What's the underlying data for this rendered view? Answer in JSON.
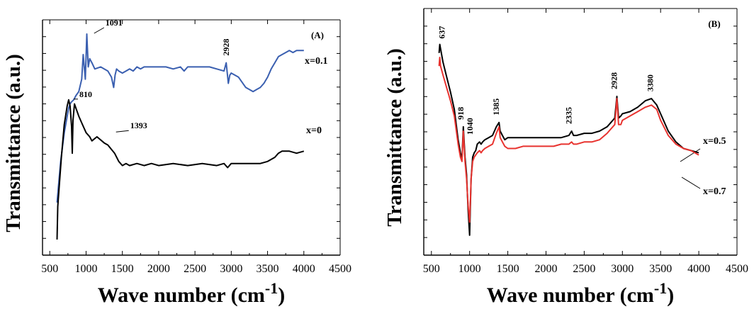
{
  "chart_data": [
    {
      "type": "line",
      "panel_label": "(A)",
      "xlabel": "Wave number (cm-1)",
      "xlabel_main": "Wave number (cm",
      "xlabel_sup": "-1",
      "xlabel_end": ")",
      "ylabel": "Transmittance (a.u.)",
      "xlim": [
        400,
        4500
      ],
      "x_ticks": [
        "500",
        "1000",
        "1500",
        "2000",
        "2500",
        "3000",
        "3500",
        "4000",
        "4500"
      ],
      "ylim": [
        0,
        100
      ],
      "grid": false,
      "series": [
        {
          "name": "x=0.1",
          "color": "#3a5fb0",
          "x": [
            600,
            620,
            650,
            700,
            740,
            760,
            780,
            800,
            830,
            860,
            900,
            940,
            960,
            990,
            1010,
            1030,
            1050,
            1080,
            1120,
            1200,
            1300,
            1350,
            1380,
            1400,
            1420,
            1450,
            1500,
            1550,
            1600,
            1650,
            1700,
            1750,
            1800,
            1900,
            2000,
            2100,
            2200,
            2300,
            2350,
            2400,
            2500,
            2600,
            2700,
            2800,
            2900,
            2930,
            2960,
            2980,
            3000,
            3050,
            3100,
            3200,
            3300,
            3350,
            3400,
            3450,
            3500,
            3550,
            3600,
            3650,
            3700,
            3750,
            3800,
            3850,
            3900,
            3950,
            4000
          ],
          "y": [
            18,
            26,
            38,
            52,
            60,
            64,
            66,
            67,
            68,
            70,
            72,
            78,
            90,
            78,
            100,
            84,
            88,
            86,
            83,
            84,
            82,
            79,
            74,
            80,
            83,
            82,
            81,
            82,
            83,
            82,
            84,
            83,
            84,
            84,
            84,
            84,
            83,
            84,
            82,
            84,
            84,
            84,
            84,
            83,
            82,
            86,
            76,
            80,
            81,
            80,
            79,
            74,
            72,
            73,
            74,
            76,
            79,
            83,
            86,
            89,
            90,
            91,
            92,
            91,
            92,
            92,
            92
          ]
        },
        {
          "name": "x=0",
          "color": "#000000",
          "x": [
            600,
            610,
            630,
            660,
            700,
            740,
            760,
            780,
            800,
            810,
            820,
            840,
            860,
            900,
            950,
            1000,
            1050,
            1080,
            1150,
            1250,
            1300,
            1393,
            1450,
            1500,
            1550,
            1600,
            1700,
            1800,
            1900,
            2000,
            2200,
            2400,
            2600,
            2800,
            2900,
            2950,
            3000,
            3100,
            3200,
            3300,
            3400,
            3500,
            3550,
            3600,
            3650,
            3700,
            3800,
            3900,
            4000
          ],
          "y": [
            0,
            16,
            26,
            40,
            56,
            65,
            68,
            65,
            55,
            42,
            58,
            66,
            64,
            60,
            56,
            52,
            50,
            48,
            50,
            47,
            46,
            42,
            38,
            36,
            37,
            36,
            37,
            36,
            37,
            36,
            37,
            36,
            37,
            36,
            37,
            35,
            37,
            37,
            37,
            37,
            37,
            38,
            39,
            40,
            42,
            43,
            43,
            42,
            43
          ]
        }
      ],
      "annotations": [
        {
          "x": 1091,
          "y": 100,
          "text": "1091"
        },
        {
          "x": 810,
          "y": 68,
          "text": "810"
        },
        {
          "x": 1393,
          "y": 52,
          "text": "1393"
        },
        {
          "x": 2928,
          "y": 86,
          "text": "2928"
        }
      ]
    },
    {
      "type": "line",
      "panel_label": "(B)",
      "xlabel": "Wave number (cm-1)",
      "xlabel_main": "Wave number (cm",
      "xlabel_sup": "-1",
      "xlabel_end": ")",
      "ylabel": "Transmittance (a.u.)",
      "xlim": [
        400,
        4500
      ],
      "x_ticks": [
        "500",
        "1000",
        "1500",
        "2000",
        "2500",
        "3000",
        "3500",
        "4000",
        "4500"
      ],
      "ylim": [
        0,
        100
      ],
      "grid": false,
      "series": [
        {
          "name": "x=0.5",
          "color": "#000000",
          "x": [
            600,
            610,
            620,
            650,
            700,
            750,
            800,
            850,
            880,
            900,
            918,
            940,
            960,
            980,
            1000,
            1010,
            1020,
            1040,
            1060,
            1080,
            1100,
            1130,
            1150,
            1170,
            1200,
            1250,
            1300,
            1350,
            1385,
            1400,
            1430,
            1460,
            1500,
            1600,
            1700,
            1800,
            1900,
            2000,
            2100,
            2200,
            2300,
            2335,
            2360,
            2400,
            2500,
            2600,
            2700,
            2800,
            2850,
            2900,
            2928,
            2950,
            2980,
            3000,
            3100,
            3200,
            3300,
            3380,
            3450,
            3500,
            3600,
            3700,
            3800,
            3900,
            4000
          ],
          "y": [
            86,
            90,
            88,
            82,
            75,
            68,
            60,
            46,
            40,
            37,
            52,
            38,
            30,
            14,
            2,
            16,
            28,
            38,
            40,
            41,
            44,
            45,
            44,
            45,
            46,
            47,
            48,
            52,
            54,
            50,
            48,
            46,
            47,
            47,
            47,
            47,
            47,
            47,
            47,
            47,
            48,
            50,
            48,
            48,
            49,
            49,
            50,
            52,
            54,
            56,
            66,
            56,
            57,
            58,
            59,
            61,
            64,
            65,
            62,
            58,
            50,
            45,
            42,
            41,
            40
          ]
        },
        {
          "name": "x=0.7",
          "color": "#e8332f",
          "x": [
            600,
            610,
            620,
            650,
            700,
            750,
            800,
            850,
            880,
            900,
            918,
            940,
            960,
            980,
            1000,
            1010,
            1020,
            1040,
            1060,
            1080,
            1100,
            1130,
            1150,
            1170,
            1200,
            1250,
            1300,
            1350,
            1385,
            1400,
            1430,
            1460,
            1500,
            1600,
            1700,
            1800,
            1900,
            2000,
            2100,
            2200,
            2300,
            2335,
            2360,
            2400,
            2500,
            2600,
            2700,
            2800,
            2850,
            2900,
            2928,
            2950,
            2980,
            3000,
            3100,
            3200,
            3300,
            3380,
            3450,
            3500,
            3600,
            3700,
            3800,
            3900,
            4000
          ],
          "y": [
            80,
            84,
            80,
            76,
            70,
            64,
            57,
            44,
            38,
            36,
            50,
            36,
            28,
            16,
            8,
            18,
            28,
            36,
            38,
            39,
            40,
            41,
            40,
            41,
            42,
            43,
            44,
            49,
            52,
            47,
            45,
            43,
            42,
            42,
            43,
            43,
            43,
            43,
            43,
            44,
            44,
            45,
            44,
            44,
            45,
            45,
            46,
            49,
            51,
            53,
            65,
            53,
            53,
            55,
            57,
            59,
            61,
            62,
            60,
            55,
            48,
            44,
            42,
            41,
            39
          ]
        }
      ],
      "annotations": [
        {
          "x": 637,
          "y": 90,
          "text": "637"
        },
        {
          "x": 918,
          "y": 52,
          "text": "918"
        },
        {
          "x": 1040,
          "y": 45,
          "text": "1040"
        },
        {
          "x": 1385,
          "y": 54,
          "text": "1385"
        },
        {
          "x": 2335,
          "y": 50,
          "text": "2335"
        },
        {
          "x": 2928,
          "y": 66,
          "text": "2928"
        },
        {
          "x": 3380,
          "y": 65,
          "text": "3380"
        }
      ]
    }
  ]
}
